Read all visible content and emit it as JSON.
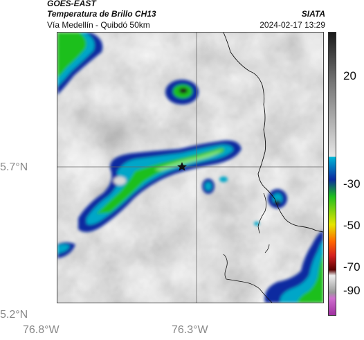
{
  "header": {
    "satellite": "GOES-EAST",
    "product": "Temperatura de Brillo CH13",
    "route": "Vía Medellín - Quibdó 50km",
    "agency": "SIATA",
    "timestamp": "2024-02-17 13:29"
  },
  "axes": {
    "y_labels": [
      "5.7°N",
      "5.2°N"
    ],
    "x_labels": [
      "76.8°W",
      "76.3°W"
    ]
  },
  "colorbar": {
    "ticks": [
      "20",
      "-30",
      "-50",
      "-70",
      "-90"
    ],
    "colors": [
      "#1a1a1a",
      "#777777",
      "#dcdcdc",
      "#00aacc",
      "#0a2aa0",
      "#1fbf1f",
      "#e6e600",
      "#d42020",
      "#5a0000",
      "#c048c0"
    ]
  },
  "map": {
    "marker": "star-icon",
    "crosshair": true
  }
}
